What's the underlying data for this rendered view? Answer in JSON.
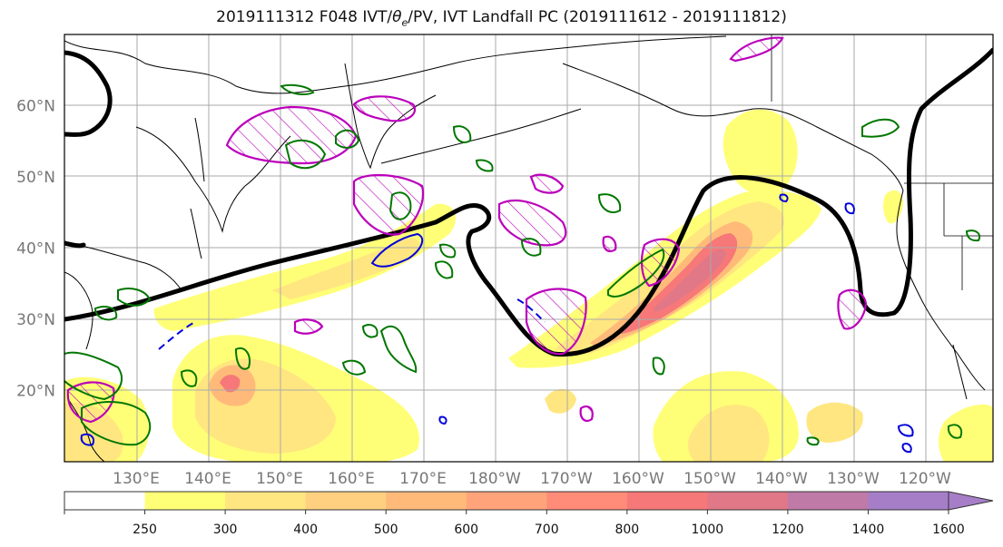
{
  "title": "2019111312 F048 IVT/θe/PV, IVT Landfall PC (2019111612 - 2019111812)",
  "lat_labels": [
    {
      "lat": 60,
      "label": "60°N"
    },
    {
      "lat": 50,
      "label": "50°N"
    },
    {
      "lat": 40,
      "label": "40°N"
    },
    {
      "lat": 30,
      "label": "30°N"
    },
    {
      "lat": 20,
      "label": "20°N"
    }
  ],
  "lon_labels": [
    {
      "lon": 130,
      "label": "130°E"
    },
    {
      "lon": 140,
      "label": "140°E"
    },
    {
      "lon": 150,
      "label": "150°E"
    },
    {
      "lon": 160,
      "label": "160°E"
    },
    {
      "lon": 170,
      "label": "170°E"
    },
    {
      "lon": 180,
      "label": "180°W"
    },
    {
      "lon": 190,
      "label": "170°W"
    },
    {
      "lon": 200,
      "label": "160°W"
    },
    {
      "lon": 210,
      "label": "150°W"
    },
    {
      "lon": 220,
      "label": "140°W"
    },
    {
      "lon": 230,
      "label": "130°W"
    },
    {
      "lon": 240,
      "label": "120°W"
    }
  ],
  "colorbar": {
    "levels": [
      250,
      300,
      400,
      500,
      600,
      700,
      800,
      1000,
      1200,
      1400,
      1600
    ],
    "colors": [
      "#ffffff",
      "#ffff77",
      "#ffe680",
      "#ffd080",
      "#ffba7a",
      "#ffa47a",
      "#ff8c78",
      "#f67878",
      "#e07888",
      "#c07aa8",
      "#a67ec8"
    ]
  },
  "colors": {
    "pv": "#bb00bb",
    "theta_e": "#007700",
    "theta_e_dashed": "#0000dd",
    "landfall_pc": "#000000"
  }
}
